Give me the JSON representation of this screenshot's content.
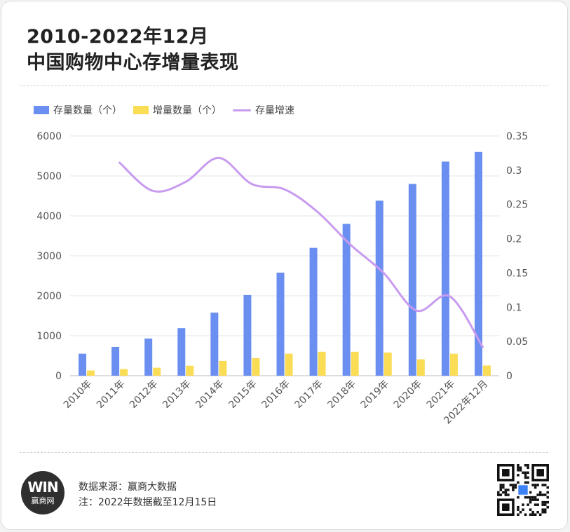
{
  "title_line1": "2010-2022年12月",
  "title_line2": "中国购物中心存增量表现",
  "colors": {
    "stock": "#6a8ff0",
    "increment": "#fadc55",
    "growth": "#c89bf0",
    "logo_bg": "#2f2f2f",
    "qr_center": "#3b82f6"
  },
  "footer": {
    "logo_mark": "WIN",
    "logo_text": "赢商网",
    "source": "数据来源：赢商大数据",
    "note": "注：2022年数据截至12月15日"
  },
  "icons": [
    "winshang-logo-icon",
    "qr-code-icon"
  ],
  "chart_data": {
    "type": "bar",
    "categories": [
      "2010年",
      "2011年",
      "2012年",
      "2013年",
      "2014年",
      "2015年",
      "2016年",
      "2017年",
      "2018年",
      "2019年",
      "2020年",
      "2021年",
      "2022年12月"
    ],
    "series": [
      {
        "name": "存量数量（个）",
        "type": "bar",
        "axis": "left",
        "values": [
          550,
          720,
          930,
          1190,
          1580,
          2020,
          2580,
          3200,
          3800,
          4380,
          4800,
          5360,
          5600
        ]
      },
      {
        "name": "增量数量（个）",
        "type": "bar",
        "axis": "left",
        "values": [
          130,
          165,
          200,
          250,
          370,
          440,
          550,
          600,
          600,
          580,
          410,
          550,
          255
        ]
      },
      {
        "name": "存量增速",
        "type": "line",
        "axis": "right",
        "values": [
          null,
          0.311,
          0.27,
          0.283,
          0.318,
          0.28,
          0.272,
          0.239,
          0.191,
          0.15,
          0.095,
          0.116,
          0.042
        ]
      }
    ],
    "y_left": {
      "min": 0,
      "max": 6000,
      "ticks": [
        "0",
        "1000",
        "2000",
        "3000",
        "4000",
        "5000",
        "6000"
      ]
    },
    "y_right": {
      "min": 0,
      "max": 0.35,
      "ticks": [
        "0",
        "0.05",
        "0.1",
        "0.15",
        "0.2",
        "0.25",
        "0.3",
        "0.35"
      ]
    },
    "grid": true,
    "legend_position": "top-left"
  }
}
